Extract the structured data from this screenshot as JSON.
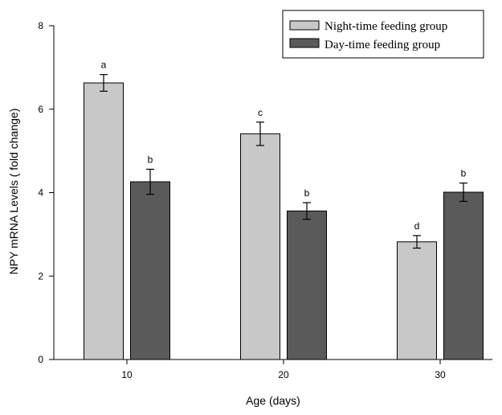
{
  "chart_data": {
    "type": "bar",
    "xlabel": "Age (days)",
    "ylabel": "NPY mRNA Levels ( fold change)",
    "ylim": [
      0,
      8
    ],
    "yticks": [
      0,
      2,
      4,
      6,
      8
    ],
    "categories": [
      "10",
      "20",
      "30"
    ],
    "grid": false,
    "legend_position": "top-right",
    "series": [
      {
        "name": "Night-time feeding group",
        "color": "#c8c8c8",
        "values": [
          6.63,
          5.41,
          2.82
        ],
        "errors": [
          0.2,
          0.28,
          0.15
        ],
        "labels": [
          "a",
          "c",
          "d"
        ]
      },
      {
        "name": "Day-time feeding group",
        "color": "#5a5a5a",
        "values": [
          4.26,
          3.56,
          4.01
        ],
        "errors": [
          0.3,
          0.2,
          0.22
        ],
        "labels": [
          "b",
          "b",
          "b"
        ]
      }
    ]
  }
}
